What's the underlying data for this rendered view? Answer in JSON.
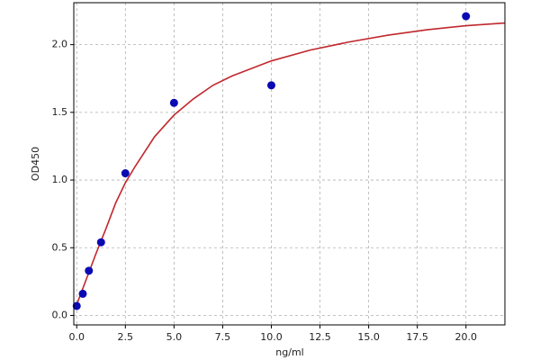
{
  "chart_data": {
    "type": "scatter",
    "xlabel": "ng/ml",
    "ylabel": "OD450",
    "xlim": [
      -0.15,
      22
    ],
    "ylim": [
      -0.07,
      2.31
    ],
    "xticks": [
      {
        "value": 0,
        "label": "0.0"
      },
      2.5,
      {
        "value": 5,
        "label": "5.0"
      },
      7.5,
      {
        "value": 10,
        "label": "10.0"
      },
      12.5,
      {
        "value": 15,
        "label": "15.0"
      },
      17.5,
      {
        "value": 20,
        "label": "20.0"
      }
    ],
    "yticks": [
      {
        "value": 0,
        "label": "0.0"
      },
      0.5,
      {
        "value": 1,
        "label": "1.0"
      },
      1.5,
      {
        "value": 2,
        "label": "2.0"
      }
    ],
    "grid": true,
    "series": [
      {
        "type": "line",
        "color": "#c0282d",
        "x": [
          0,
          0.5,
          1,
          1.5,
          2,
          2.5,
          3,
          4,
          5,
          6,
          7,
          8,
          10,
          12,
          14,
          16,
          18,
          20,
          22
        ],
        "values": [
          0.08,
          0.27,
          0.46,
          0.64,
          0.83,
          0.98,
          1.1,
          1.32,
          1.48,
          1.6,
          1.7,
          1.77,
          1.88,
          1.96,
          2.02,
          2.07,
          2.11,
          2.14,
          2.16
        ]
      },
      {
        "type": "scatter",
        "color": "#0a0ab4",
        "x": [
          0,
          0.3125,
          0.625,
          1.25,
          2.5,
          5,
          10,
          20
        ],
        "values": [
          0.07,
          0.16,
          0.33,
          0.54,
          1.05,
          1.57,
          1.7,
          2.21
        ]
      }
    ]
  }
}
